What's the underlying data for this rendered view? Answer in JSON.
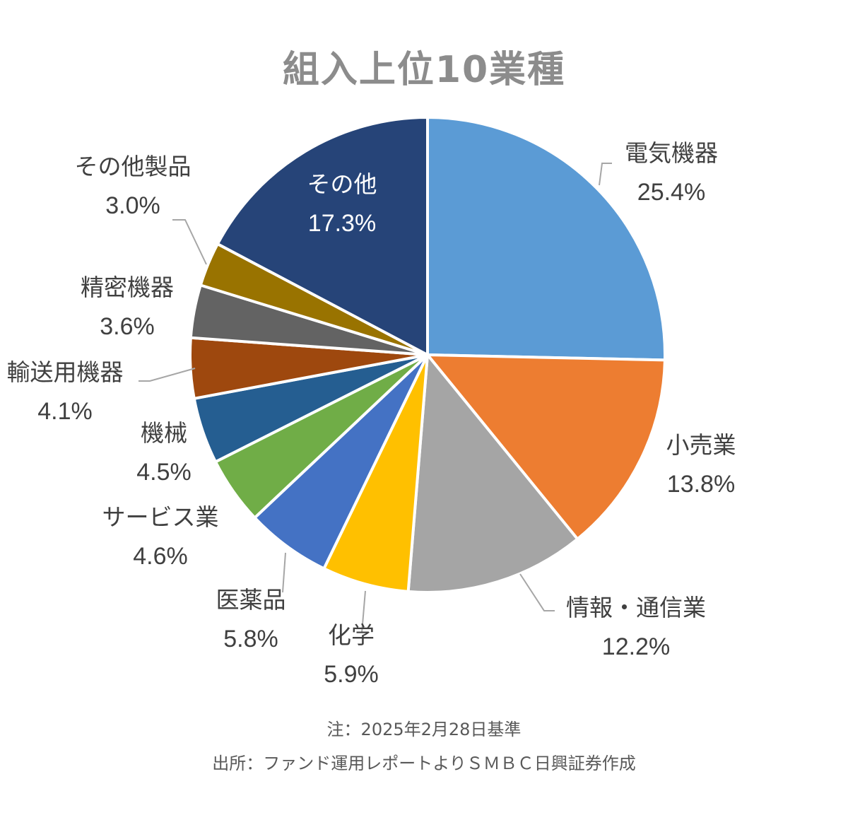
{
  "chart_data": {
    "type": "pie",
    "title": "組入上位10業種",
    "slices": [
      {
        "label": "電気機器",
        "value": 25.4,
        "value_text": "25.4%",
        "color": "#5b9bd5"
      },
      {
        "label": "小売業",
        "value": 13.8,
        "value_text": "13.8%",
        "color": "#ed7d31"
      },
      {
        "label": "情報・通信業",
        "value": 12.2,
        "value_text": "12.2%",
        "color": "#a5a5a5"
      },
      {
        "label": "化学",
        "value": 5.9,
        "value_text": "5.9%",
        "color": "#ffc000"
      },
      {
        "label": "医薬品",
        "value": 5.8,
        "value_text": "5.8%",
        "color": "#4472c4"
      },
      {
        "label": "サービス業",
        "value": 4.6,
        "value_text": "4.6%",
        "color": "#70ad47"
      },
      {
        "label": "機械",
        "value": 4.5,
        "value_text": "4.5%",
        "color": "#255e91"
      },
      {
        "label": "輸送用機器",
        "value": 4.1,
        "value_text": "4.1%",
        "color": "#9e480e"
      },
      {
        "label": "精密機器",
        "value": 3.6,
        "value_text": "3.6%",
        "color": "#636363"
      },
      {
        "label": "その他製品",
        "value": 3.0,
        "value_text": "3.0%",
        "color": "#997300"
      },
      {
        "label": "その他",
        "value": 17.3,
        "value_text": "17.3%",
        "color": "#264478"
      }
    ],
    "start_angle": "12 o'clock",
    "direction": "clockwise"
  },
  "footnotes": {
    "date": "注：2025年2月28日基準",
    "source": "出所：ファンド運用レポートよりＳＭＢＣ日興証券作成"
  }
}
